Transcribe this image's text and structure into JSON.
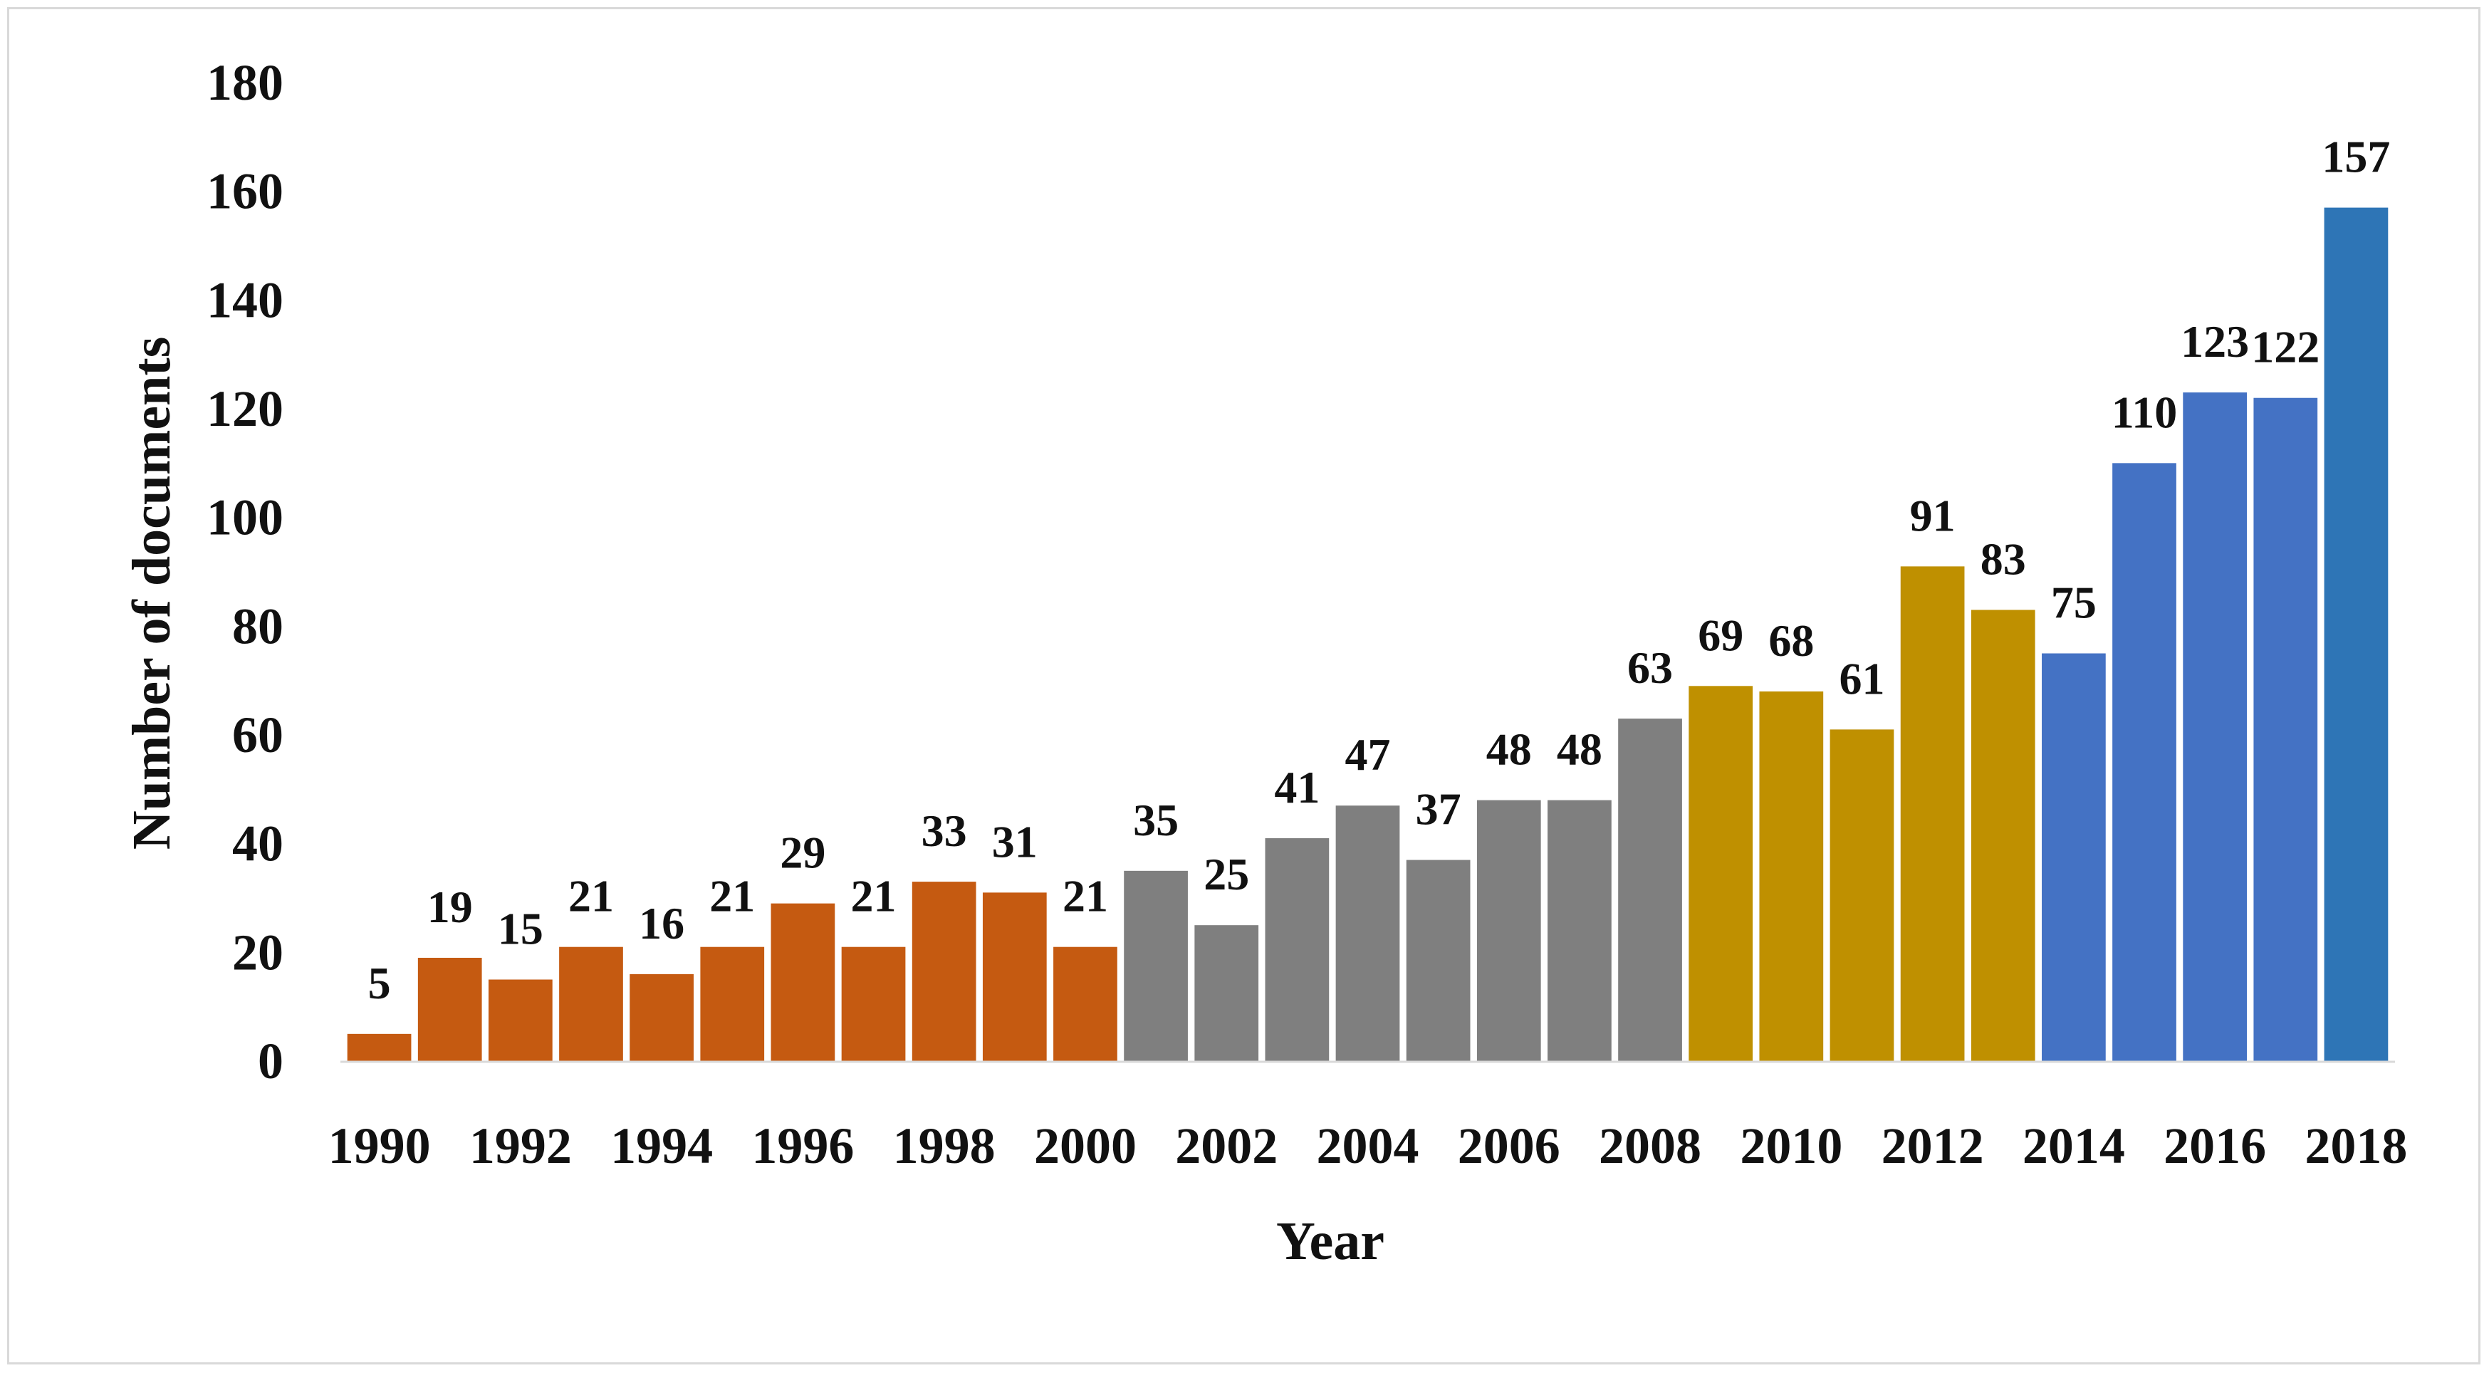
{
  "chart_data": {
    "type": "bar",
    "title": "",
    "xlabel": "Year",
    "ylabel": "Number of documents",
    "ylim": [
      0,
      180
    ],
    "yticks": [
      0,
      20,
      40,
      60,
      80,
      100,
      120,
      140,
      160,
      180
    ],
    "grid": false,
    "legend": "none",
    "categories": [
      "1990",
      "1991",
      "1992",
      "1993",
      "1994",
      "1995",
      "1996",
      "1997",
      "1998",
      "1999",
      "2000",
      "2001",
      "2002",
      "2003",
      "2004",
      "2005",
      "2006",
      "2007",
      "2008",
      "2009",
      "2010",
      "2011",
      "2012",
      "2013",
      "2014",
      "2015",
      "2016",
      "2017",
      "2018"
    ],
    "x_tick_labels": [
      "1990",
      "1992",
      "1994",
      "1996",
      "1998",
      "2000",
      "2002",
      "2004",
      "2006",
      "2008",
      "2010",
      "2012",
      "2014",
      "2016",
      "2018"
    ],
    "values": [
      5,
      19,
      15,
      21,
      16,
      21,
      29,
      21,
      33,
      31,
      21,
      35,
      25,
      41,
      47,
      37,
      48,
      48,
      63,
      69,
      68,
      61,
      91,
      83,
      75,
      110,
      123,
      122,
      157
    ],
    "data_labels": [
      "5",
      "19",
      "15",
      "21",
      "16",
      "21",
      "29",
      "21",
      "33",
      "31",
      "21",
      "35",
      "25",
      "41",
      "47",
      "37",
      "48",
      "48",
      "63",
      "69",
      "68",
      "61",
      "91",
      "83",
      "75",
      "110",
      "123",
      "122",
      "157"
    ],
    "bar_colors": [
      "#c55a11",
      "#c55a11",
      "#c55a11",
      "#c55a11",
      "#c55a11",
      "#c55a11",
      "#c55a11",
      "#c55a11",
      "#c55a11",
      "#c55a11",
      "#c55a11",
      "#7f7f7f",
      "#7f7f7f",
      "#7f7f7f",
      "#7f7f7f",
      "#7f7f7f",
      "#7f7f7f",
      "#7f7f7f",
      "#7f7f7f",
      "#bf9000",
      "#bf9000",
      "#bf9000",
      "#bf9000",
      "#bf9000",
      "#4472c4",
      "#4472c4",
      "#4472c4",
      "#4472c4",
      "#2e75b6"
    ]
  }
}
